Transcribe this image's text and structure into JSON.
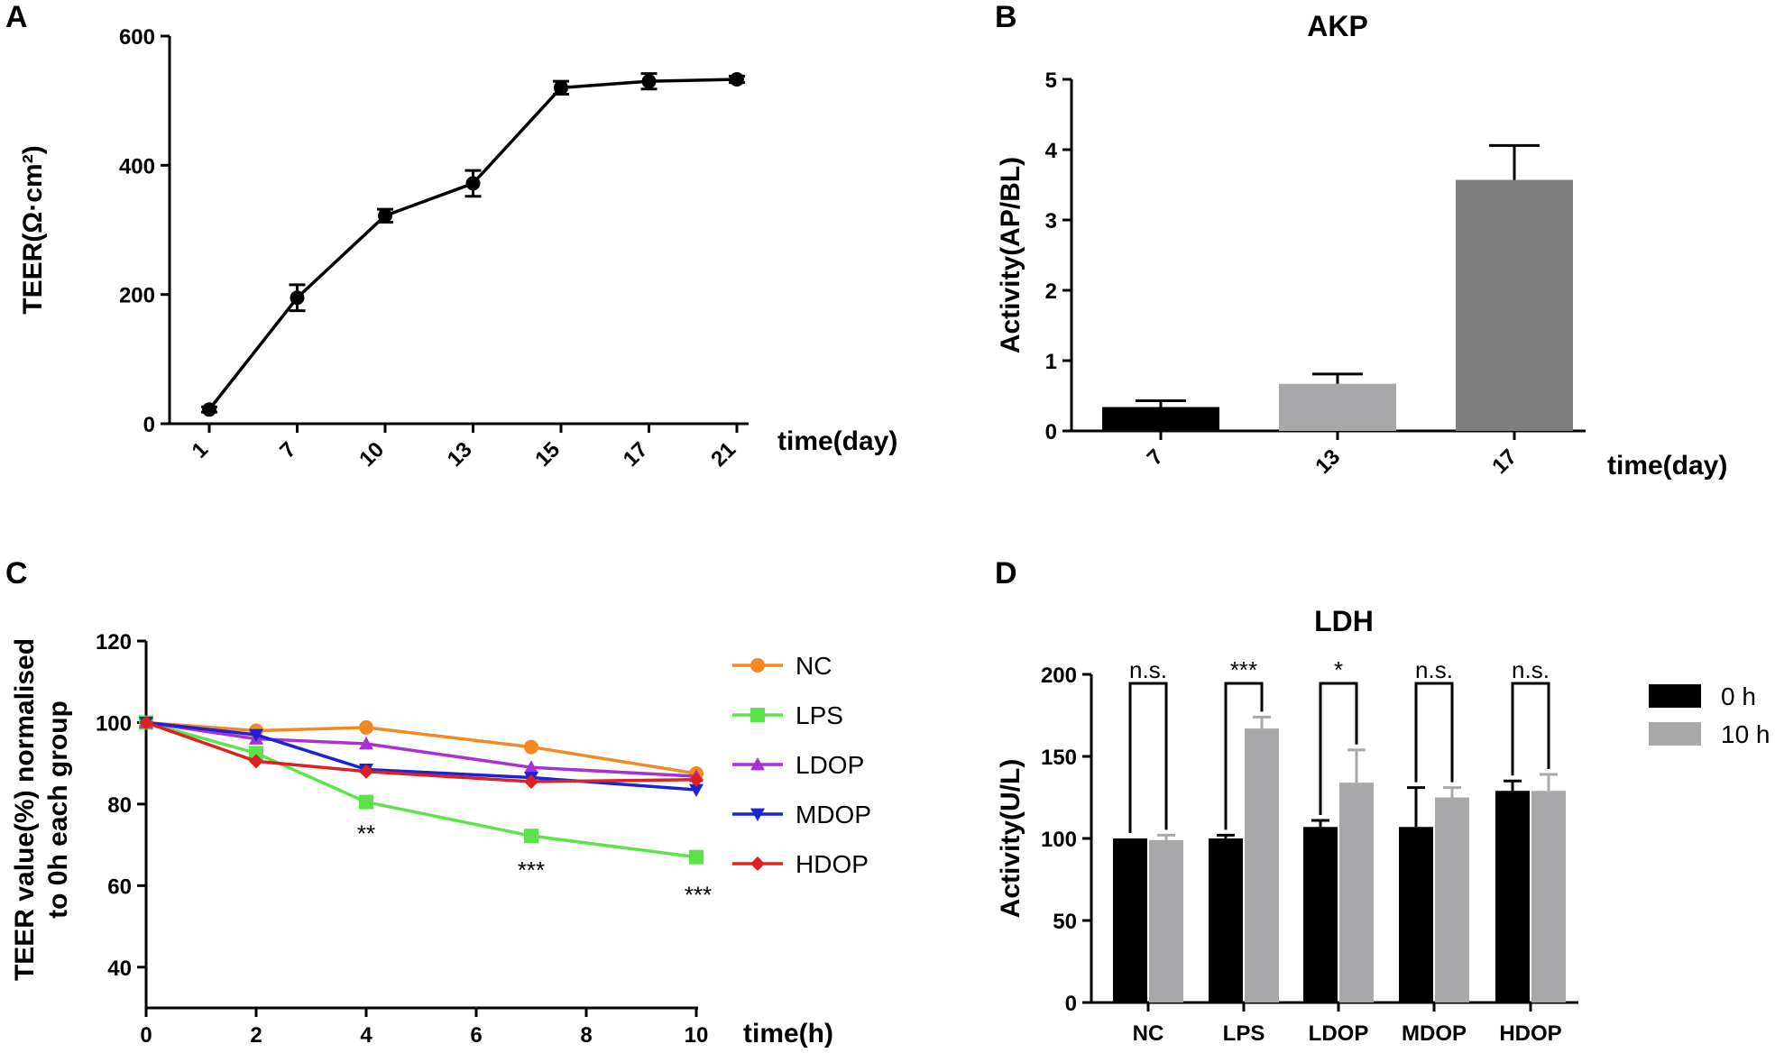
{
  "chart_data": [
    {
      "panel": "A",
      "type": "line",
      "title": "",
      "xlabel": "time(day)",
      "ylabel": "TEER(Ω·cm²)",
      "categories": [
        "1",
        "7",
        "10",
        "13",
        "15",
        "17",
        "21"
      ],
      "values": [
        22,
        195,
        322,
        372,
        520,
        530,
        533
      ],
      "errors": [
        4,
        20,
        10,
        20,
        10,
        12,
        5
      ],
      "ylim": [
        0,
        600
      ],
      "yticks": [
        "0",
        "200",
        "400",
        "600"
      ],
      "color": "#000000"
    },
    {
      "panel": "B",
      "type": "bar",
      "title": "AKP",
      "xlabel": "time(day)",
      "ylabel": "Activity(AP/BL)",
      "categories": [
        "7",
        "13",
        "17"
      ],
      "values": [
        0.34,
        0.67,
        3.57
      ],
      "errors": [
        0.09,
        0.14,
        0.49
      ],
      "colors": [
        "#000000",
        "#a8a8aa",
        "#7f7f7f"
      ],
      "ylim": [
        0,
        5
      ],
      "yticks": [
        "0",
        "1",
        "2",
        "3",
        "4",
        "5"
      ]
    },
    {
      "panel": "C",
      "type": "line",
      "title": "",
      "xlabel": "time(h)",
      "ylabel": "TEER value(%) normalised",
      "ylabel2": "to 0h each group",
      "x": [
        0,
        2,
        4,
        7,
        10
      ],
      "xticks": [
        "0",
        "2",
        "4",
        "6",
        "8",
        "10"
      ],
      "xlim": [
        0,
        10
      ],
      "ylim": [
        30,
        120
      ],
      "yticks": [
        "40",
        "60",
        "80",
        "100",
        "120"
      ],
      "series": [
        {
          "name": "NC",
          "color": "#f5891f",
          "marker": "circle",
          "values": [
            100,
            98,
            98.8,
            94,
            87.5
          ]
        },
        {
          "name": "LPS",
          "color": "#5de34a",
          "marker": "square",
          "values": [
            100,
            92.5,
            80.5,
            72.2,
            67
          ]
        },
        {
          "name": "LDOP",
          "color": "#a930d6",
          "marker": "triangle-up",
          "values": [
            100,
            96,
            94.8,
            89,
            86.8
          ]
        },
        {
          "name": "MDOP",
          "color": "#1a24d6",
          "marker": "triangle-down",
          "values": [
            100,
            97,
            88.5,
            86.5,
            83.5
          ]
        },
        {
          "name": "HDOP",
          "color": "#e0201e",
          "marker": "diamond",
          "values": [
            100,
            90.5,
            88,
            85.5,
            86
          ]
        }
      ],
      "annotations": [
        {
          "x": 4,
          "y": 73,
          "text": "**"
        },
        {
          "x": 7,
          "y": 64,
          "text": "***"
        },
        {
          "x": 10,
          "y": 58,
          "text": "***"
        }
      ]
    },
    {
      "panel": "D",
      "type": "bar",
      "title": "LDH",
      "xlabel": "",
      "ylabel": "Activity(U/L)",
      "categories": [
        "NC",
        "LPS",
        "LDOP",
        "MDOP",
        "HDOP"
      ],
      "ylim": [
        0,
        200
      ],
      "yticks": [
        "0",
        "50",
        "100",
        "150",
        "200"
      ],
      "series": [
        {
          "name": "0 h",
          "color": "#000000",
          "values": [
            100,
            100,
            107,
            107,
            129
          ],
          "errors": [
            0,
            2,
            4,
            24,
            6
          ]
        },
        {
          "name": "10 h",
          "color": "#a8a8aa",
          "values": [
            99,
            167,
            134,
            125,
            129
          ],
          "errors": [
            3,
            7,
            20,
            6,
            10
          ]
        }
      ],
      "significance": [
        "n.s.",
        "***",
        "*",
        "n.s.",
        "n.s."
      ]
    }
  ]
}
